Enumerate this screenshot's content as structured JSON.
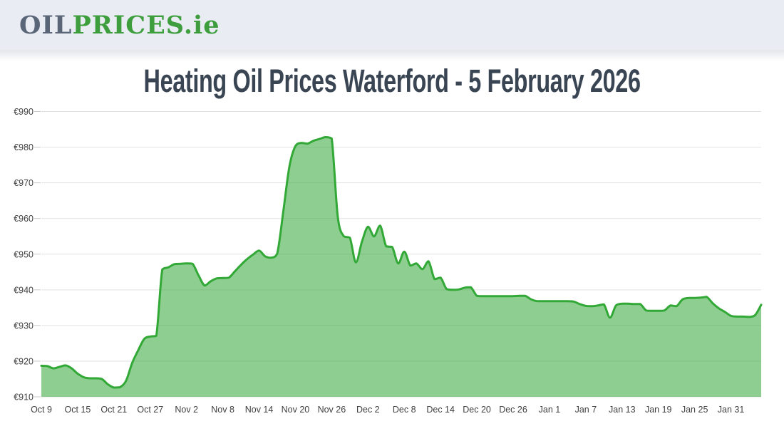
{
  "header": {
    "logo_part1": "OIL",
    "logo_part2": "PRICES",
    "logo_part3": ".ie",
    "logo_slate_color": "#5a6577",
    "logo_green_color": "#3e9e3e",
    "background_color": "#e9ecf3"
  },
  "page": {
    "title": "Heating Oil Prices Waterford - 5 February 2026",
    "title_color": "#3a4554"
  },
  "chart_data": {
    "type": "area",
    "title": "Heating Oil Prices Waterford - 5 February 2026",
    "currency_prefix": "€",
    "ylim": [
      910,
      990
    ],
    "y_ticks": [
      990,
      980,
      970,
      960,
      950,
      940,
      930,
      920,
      910
    ],
    "x_tick_labels": [
      "Oct 9",
      "Oct 15",
      "Oct 21",
      "Oct 27",
      "Nov 2",
      "Nov 8",
      "Nov 14",
      "Nov 20",
      "Nov 26",
      "Dec 2",
      "Dec 8",
      "Dec 14",
      "Dec 20",
      "Dec 26",
      "Jan 1",
      "Jan 7",
      "Jan 13",
      "Jan 19",
      "Jan 25",
      "Jan 31"
    ],
    "x_tick_indices": [
      0,
      6,
      12,
      18,
      24,
      30,
      36,
      42,
      48,
      54,
      60,
      66,
      72,
      78,
      84,
      90,
      96,
      102,
      108,
      114
    ],
    "grid": true,
    "legend": false,
    "values": [
      918.7,
      918.6,
      918.0,
      918.4,
      918.8,
      918.0,
      916.5,
      915.5,
      915.2,
      915.2,
      915.0,
      913.5,
      912.6,
      912.7,
      914.5,
      919.4,
      923.0,
      926.2,
      926.9,
      927.1,
      945.7,
      946.3,
      947.2,
      947.3,
      947.4,
      947.3,
      944.0,
      941.2,
      942.4,
      943.2,
      943.3,
      943.4,
      945.2,
      947.0,
      948.6,
      949.9,
      951.0,
      949.4,
      949.0,
      950.2,
      962.0,
      974.5,
      980.3,
      981.2,
      981.0,
      981.8,
      982.3,
      982.8,
      982.4,
      960.5,
      955.0,
      954.6,
      947.7,
      953.5,
      957.7,
      955.0,
      958.0,
      952.2,
      952.0,
      947.4,
      950.7,
      946.8,
      947.4,
      945.8,
      948.0,
      943.0,
      943.4,
      940.2,
      940.0,
      940.1,
      940.6,
      940.7,
      938.3,
      938.2,
      938.2,
      938.2,
      938.2,
      938.2,
      938.2,
      938.3,
      938.3,
      937.3,
      936.8,
      936.8,
      936.8,
      936.8,
      936.8,
      936.8,
      936.7,
      936.0,
      935.5,
      935.4,
      935.6,
      935.9,
      932.2,
      935.6,
      936.1,
      936.1,
      936.0,
      936.0,
      934.2,
      934.1,
      934.1,
      934.2,
      935.6,
      935.4,
      937.3,
      937.7,
      937.7,
      937.8,
      938.0,
      936.2,
      934.8,
      933.8,
      932.7,
      932.5,
      932.5,
      932.4,
      932.9,
      935.8
    ],
    "colors": {
      "line": "#32a836",
      "fill": "rgba(50,168,54,0.55)",
      "grid": "#e2e2e2",
      "tick": "#c8c8c8",
      "axis_label": "#3f3f3f"
    }
  }
}
